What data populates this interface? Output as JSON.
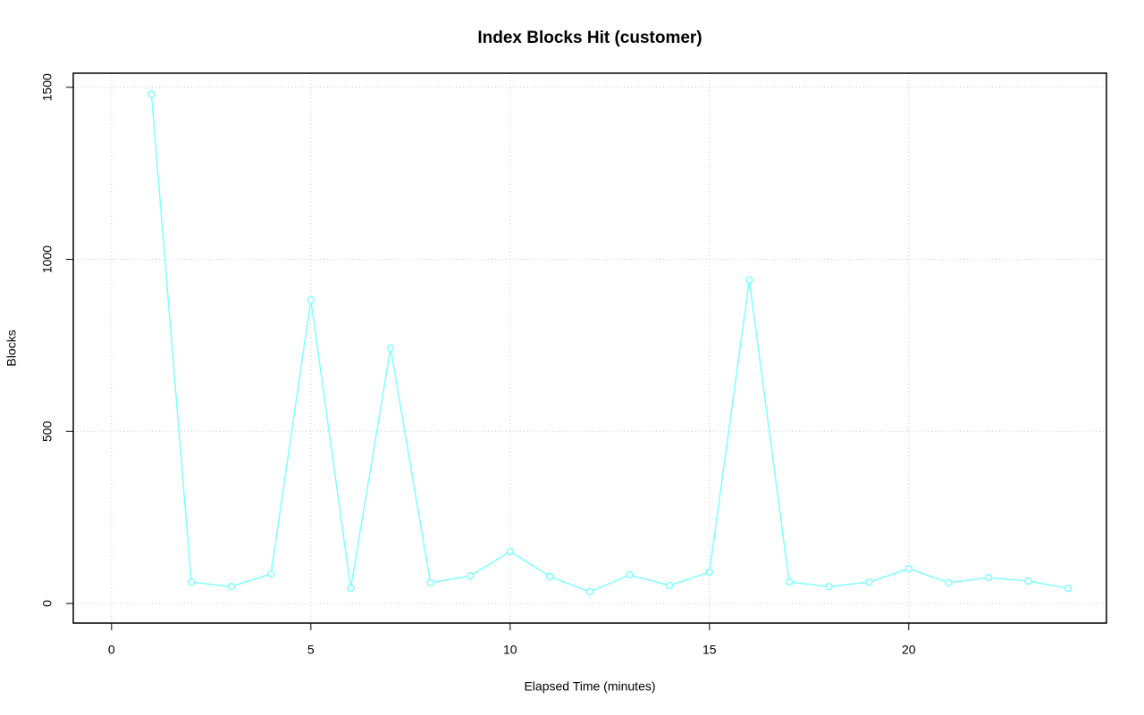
{
  "chart_data": {
    "type": "line",
    "title": "Index Blocks Hit (customer)",
    "x_label": "Elapsed Time (minutes)",
    "y_label": "Blocks",
    "x": [
      1,
      2,
      3,
      4,
      5,
      6,
      7,
      8,
      9,
      10,
      11,
      12,
      13,
      14,
      15,
      16,
      17,
      18,
      19,
      20,
      21,
      22,
      23,
      24
    ],
    "values": [
      1480,
      62,
      49,
      86,
      882,
      44,
      742,
      60,
      80,
      151,
      78,
      34,
      83,
      52,
      91,
      940,
      62,
      49,
      62,
      101,
      60,
      75,
      65,
      44
    ],
    "color": "#80ffff",
    "xlim": [
      -0.96,
      24.96
    ],
    "ylim": [
      -57,
      1541
    ],
    "xticks": [
      0,
      5,
      10,
      15,
      20
    ],
    "yticks": [
      0,
      500,
      1000,
      1500
    ],
    "grid": true,
    "markers": true
  }
}
